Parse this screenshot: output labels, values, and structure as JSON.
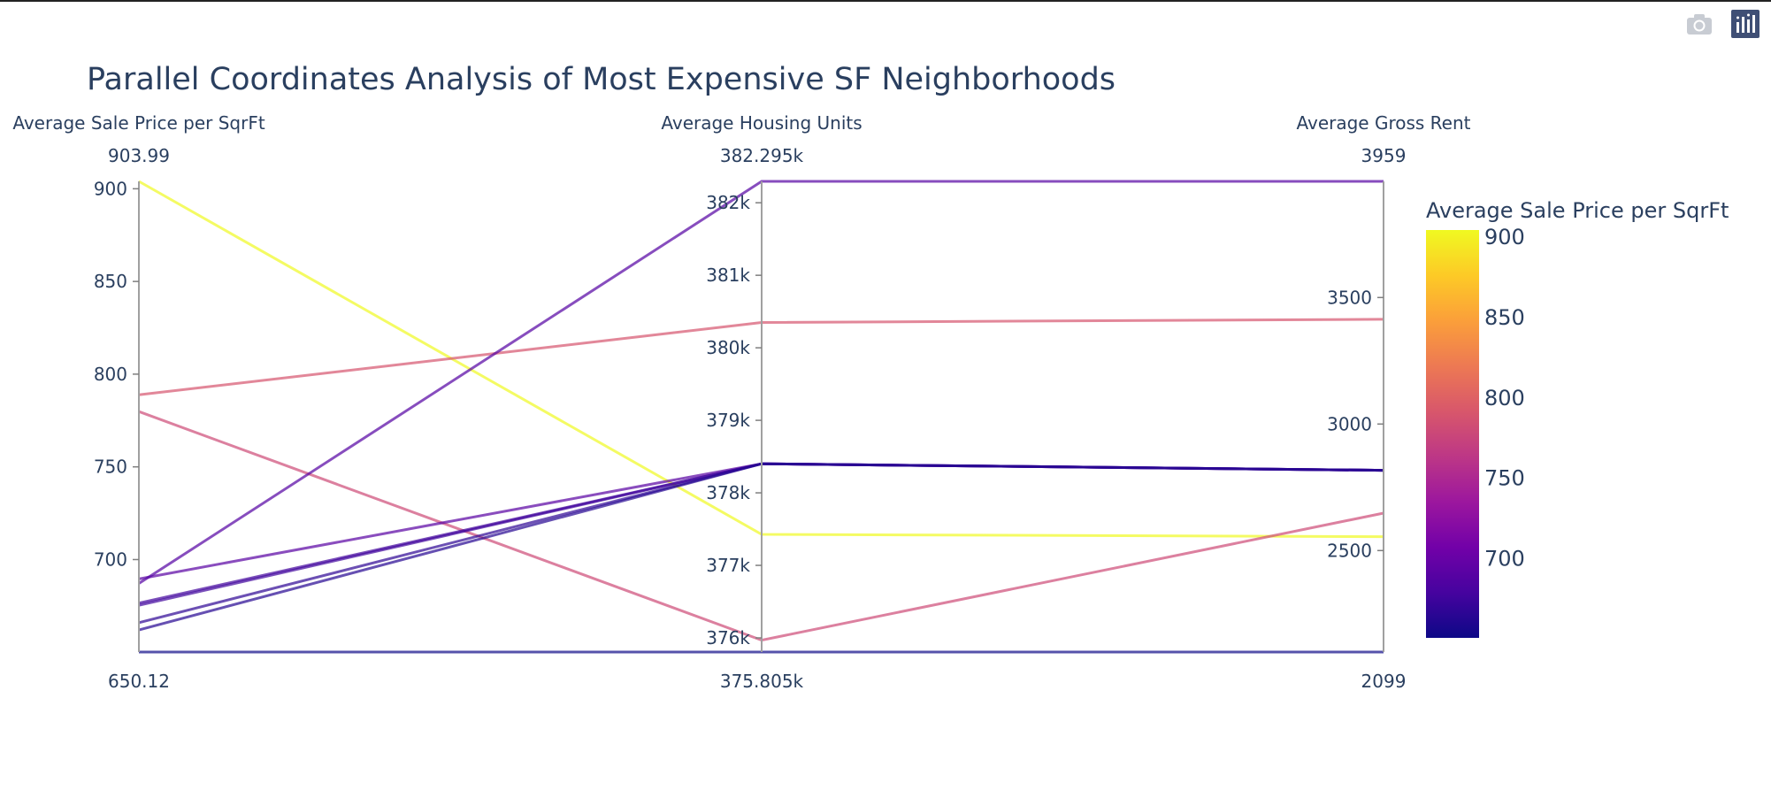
{
  "modebar": {
    "icons": [
      "camera-icon",
      "plotly-logo-icon"
    ]
  },
  "chart_data": {
    "type": "parallel_coordinates",
    "title": "Parallel Coordinates Analysis of Most Expensive SF Neighborhoods",
    "dimensions": [
      {
        "label": "Average Sale Price per SqrFt",
        "range": [
          650.12,
          903.99
        ],
        "range_labels": [
          "903.99",
          "650.12"
        ],
        "ticks": [
          700,
          750,
          800,
          850,
          900
        ],
        "tick_labels": [
          "700",
          "750",
          "800",
          "850",
          "900"
        ]
      },
      {
        "label": "Average Housing Units",
        "range": [
          375805,
          382295
        ],
        "range_labels": [
          "382.295k",
          "375.805k"
        ],
        "ticks": [
          376000,
          377000,
          378000,
          379000,
          380000,
          381000,
          382000
        ],
        "tick_labels": [
          "376k",
          "377k",
          "378k",
          "379k",
          "380k",
          "381k",
          "382k"
        ]
      },
      {
        "label": "Average Gross Rent",
        "range": [
          2099,
          3959
        ],
        "range_labels": [
          "3959",
          "2099"
        ],
        "ticks": [
          2500,
          3000,
          3500
        ],
        "tick_labels": [
          "2500",
          "3000",
          "3500"
        ]
      }
    ],
    "lines": [
      [
        903.99,
        377427,
        2555
      ],
      [
        788.84,
        380349,
        3414
      ],
      [
        779.81,
        375968,
        2648
      ],
      [
        689.56,
        378401,
        2817
      ],
      [
        687.09,
        382295,
        3959
      ],
      [
        676.51,
        378401,
        2817
      ],
      [
        675.35,
        378401,
        2817
      ],
      [
        665.96,
        378401,
        2817
      ],
      [
        662.01,
        378401,
        2817
      ],
      [
        650.12,
        375805,
        2099
      ]
    ],
    "colorscale": {
      "title": "Average Sale Price per SqrFt",
      "cmin": 650.12,
      "cmax": 903.99,
      "ticks": [
        700,
        750,
        800,
        850,
        900
      ],
      "tick_labels": [
        "700",
        "750",
        "800",
        "850",
        "900"
      ],
      "colors": [
        "#0d0887",
        "#46039f",
        "#7201a8",
        "#9c179e",
        "#bd3786",
        "#d8576b",
        "#ed7953",
        "#fb9f3a",
        "#fdca26",
        "#f0f921"
      ]
    }
  }
}
